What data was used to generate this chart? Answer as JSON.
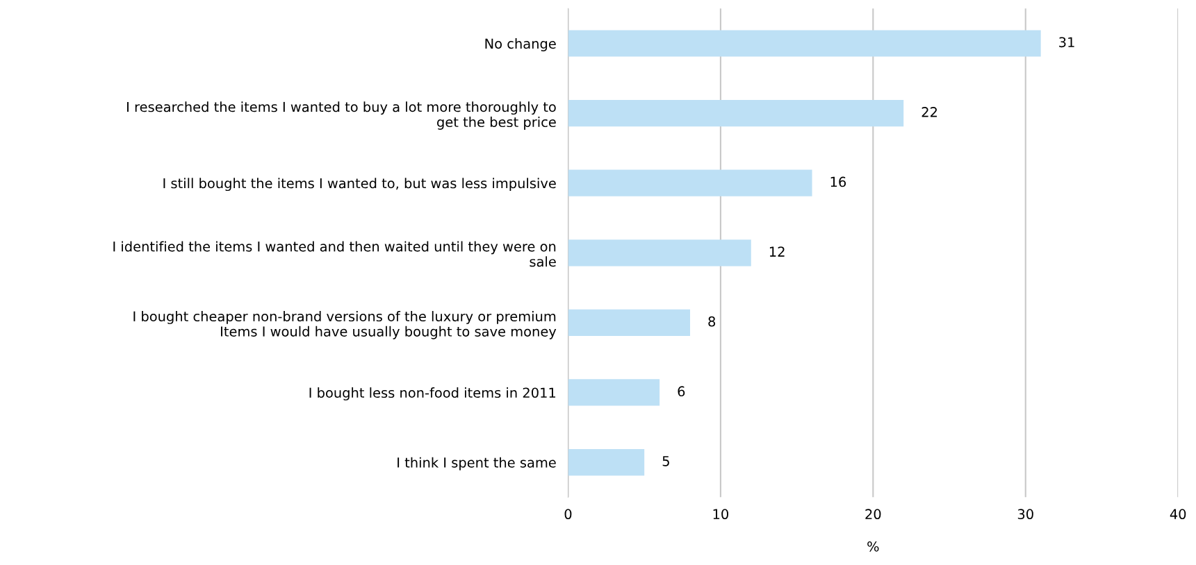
{
  "chart_data": {
    "type": "bar",
    "orientation": "horizontal",
    "xlabel": "%",
    "categories": [
      "No change",
      "I researched the items I wanted to buy a lot more thoroughly to\nget the best price",
      "I still bought the items I wanted to, but was less impulsive",
      "I identified the items I wanted and then waited until they were on\nsale",
      "I bought cheaper non-brand versions of the luxury or premium\nItems I would have usually bought to save money",
      "I bought less non-food items in 2011",
      "I think I spent the same"
    ],
    "values": [
      31,
      22,
      16,
      12,
      8,
      6,
      5
    ],
    "color": "#bde0f5",
    "xlim": [
      0,
      40
    ],
    "xticks": [
      0,
      10,
      20,
      30,
      40
    ],
    "grid": "x",
    "data_labels": true
  }
}
